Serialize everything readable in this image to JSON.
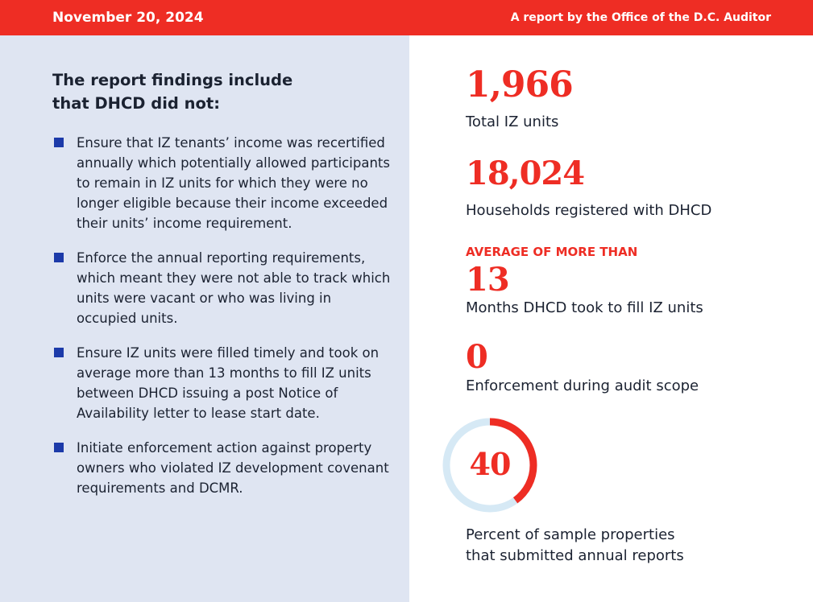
{
  "header": {
    "date": "November 20, 2024",
    "byline": "A report by the Office of the D.C. Auditor"
  },
  "findings": {
    "heading": "The report findings include that DHCD did not:",
    "items": [
      "Ensure that IZ tenants’ income was recertified annually which potentially allowed participants to remain in IZ units for which they were no longer eligible because their income exceeded their units’ income requirement.",
      "Enforce the annual reporting requirements, which meant they were not able to track which units were vacant or who was living in occupied units.",
      "Ensure IZ units were filled timely and took on average more than 13 months to fill IZ units between DHCD issuing a post Notice of Availability letter to lease start date.",
      "Initiate enforcement action against property owners who violated IZ development covenant requirements and DCMR."
    ]
  },
  "stats": {
    "total_units": {
      "value": "1,966",
      "label": "Total IZ units"
    },
    "households": {
      "value": "18,024",
      "label": "Households registered with DHCD"
    },
    "months": {
      "kicker": "AVERAGE OF MORE THAN",
      "value": "13",
      "label": "Months DHCD took to fill IZ units"
    },
    "enforcement": {
      "value": "0",
      "label": "Enforcement during audit scope"
    },
    "reports": {
      "value": "40",
      "percent": 40,
      "label_line1": "Percent of sample properties",
      "label_line2": "that submitted annual reports"
    }
  },
  "colors": {
    "accent_red": "#ee2d24",
    "bullet_blue": "#1c3aa9",
    "panel_bg": "#dfe5f2",
    "donut_track": "#d6e9f5"
  }
}
